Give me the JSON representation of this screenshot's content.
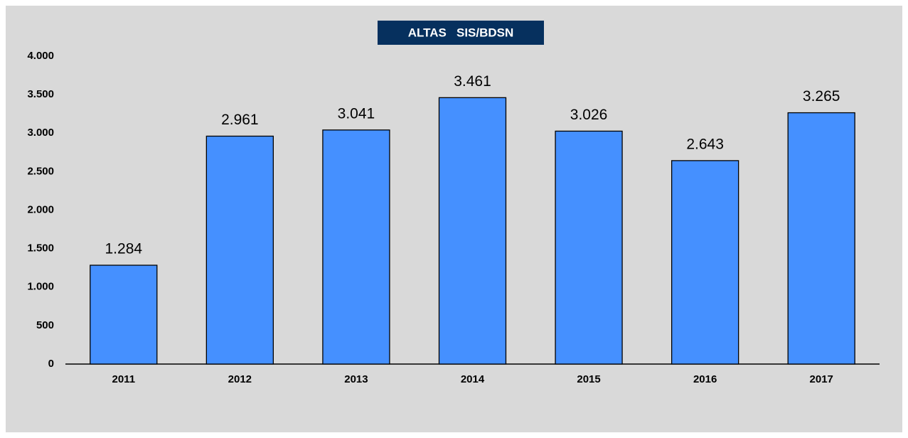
{
  "chart_data": {
    "type": "bar",
    "title": "ALTAS   SIS/BDSN",
    "categories": [
      "2011",
      "2012",
      "2013",
      "2014",
      "2015",
      "2016",
      "2017"
    ],
    "values": [
      1284,
      2961,
      3041,
      3461,
      3026,
      2643,
      3265
    ],
    "value_labels": [
      "1.284",
      "2.961",
      "3.041",
      "3.461",
      "3.026",
      "2.643",
      "3.265"
    ],
    "color": "#4590ff",
    "ylim": [
      0,
      4000
    ],
    "yticks": [
      0,
      500,
      {
        "value": 1000,
        "label": "1.000"
      },
      {
        "value": 1500,
        "label": "1.500"
      },
      {
        "value": 2000,
        "label": "2.000"
      },
      {
        "value": 2500,
        "label": "2.500"
      },
      {
        "value": 3000,
        "label": "3.000"
      },
      {
        "value": 3500,
        "label": "3.500"
      },
      {
        "value": 4000,
        "label": "4.000"
      }
    ],
    "grid": false
  }
}
